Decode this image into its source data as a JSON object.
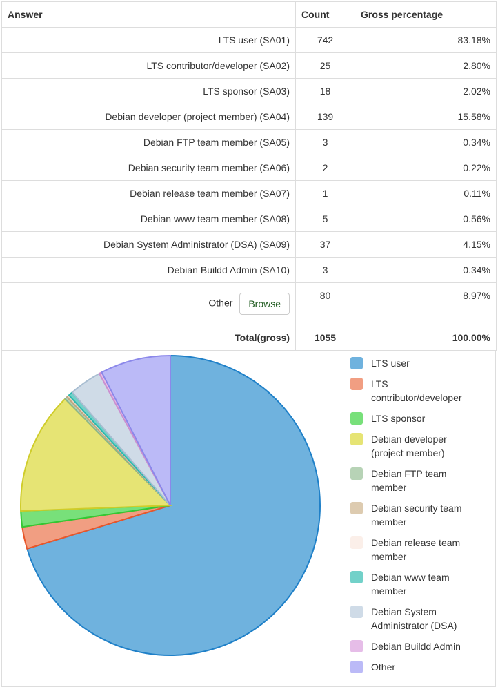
{
  "table": {
    "headers": [
      "Answer",
      "Count",
      "Gross percentage"
    ],
    "rows": [
      {
        "answer": "LTS user (SA01)",
        "count": "742",
        "pct": "83.18%"
      },
      {
        "answer": "LTS contributor/developer (SA02)",
        "count": "25",
        "pct": "2.80%"
      },
      {
        "answer": "LTS sponsor (SA03)",
        "count": "18",
        "pct": "2.02%"
      },
      {
        "answer": "Debian developer (project member) (SA04)",
        "count": "139",
        "pct": "15.58%"
      },
      {
        "answer": "Debian FTP team member (SA05)",
        "count": "3",
        "pct": "0.34%"
      },
      {
        "answer": "Debian security team member (SA06)",
        "count": "2",
        "pct": "0.22%"
      },
      {
        "answer": "Debian release team member (SA07)",
        "count": "1",
        "pct": "0.11%"
      },
      {
        "answer": "Debian www team member (SA08)",
        "count": "5",
        "pct": "0.56%"
      },
      {
        "answer": "Debian System Administrator (DSA) (SA09)",
        "count": "37",
        "pct": "4.15%"
      },
      {
        "answer": "Debian Buildd Admin (SA10)",
        "count": "3",
        "pct": "0.34%"
      }
    ],
    "other": {
      "answer": "Other",
      "button": "Browse",
      "count": "80",
      "pct": "8.97%"
    },
    "total": {
      "label": "Total(gross)",
      "count": "1055",
      "pct": "100.00%"
    }
  },
  "chart_data": {
    "type": "pie",
    "title": "",
    "slices": [
      {
        "label": "LTS user",
        "value": 742,
        "fill": "#6fb2de",
        "stroke": "#1f80c8"
      },
      {
        "label": "LTS contributor/developer",
        "value": 25,
        "fill": "#f19e82",
        "stroke": "#e8562a"
      },
      {
        "label": "LTS sponsor",
        "value": 18,
        "fill": "#78e07a",
        "stroke": "#33c733"
      },
      {
        "label": "Debian developer (project member)",
        "value": 139,
        "fill": "#e6e474",
        "stroke": "#cfcc2a"
      },
      {
        "label": "Debian FTP team member",
        "value": 3,
        "fill": "#b7d3b6",
        "stroke": "#8cb58a"
      },
      {
        "label": "Debian security team member",
        "value": 2,
        "fill": "#ddcbb0",
        "stroke": "#c0a880"
      },
      {
        "label": "Debian release team member",
        "value": 1,
        "fill": "#fbefe9",
        "stroke": "#f0d6c8"
      },
      {
        "label": "Debian www team member",
        "value": 5,
        "fill": "#72d1c9",
        "stroke": "#2cb8ad"
      },
      {
        "label": "Debian System Administrator (DSA)",
        "value": 37,
        "fill": "#cfdbe7",
        "stroke": "#a8bdd1"
      },
      {
        "label": "Debian Buildd Admin",
        "value": 3,
        "fill": "#e6bde8",
        "stroke": "#cc8fd0"
      },
      {
        "label": "Other",
        "value": 80,
        "fill": "#bbbaf7",
        "stroke": "#8b88ea"
      }
    ],
    "legend_labels": [
      [
        "LTS user"
      ],
      [
        "LTS",
        "contributor/developer"
      ],
      [
        "LTS sponsor"
      ],
      [
        "Debian developer",
        "(project member)"
      ],
      [
        "Debian FTP team",
        "member"
      ],
      [
        "Debian security team",
        "member"
      ],
      [
        "Debian release team",
        "member"
      ],
      [
        "Debian www team",
        "member"
      ],
      [
        "Debian System",
        "Administrator (DSA)"
      ],
      [
        "Debian Buildd Admin"
      ],
      [
        "Other"
      ]
    ],
    "start_angle": "top, counterclockwise from LTS user ending at Other",
    "legend_position": "right"
  }
}
